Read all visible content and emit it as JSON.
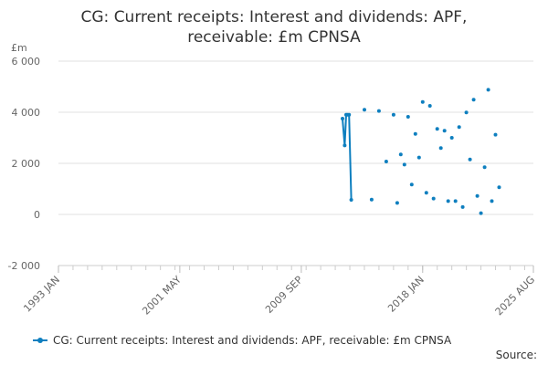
{
  "chart_data": {
    "type": "line",
    "title_line1": "CG: Current receipts: Interest and dividends: APF,",
    "title_line2": "receivable: £m CPNSA",
    "ylabel": "£m",
    "ylim": [
      -2000,
      6000
    ],
    "yticks": [
      -2000,
      0,
      2000,
      4000,
      6000
    ],
    "ytick_labels": [
      "-2 000",
      "0",
      "2 000",
      "4 000",
      "6 000"
    ],
    "xlim": [
      1993.0,
      2025.6
    ],
    "xticks": [
      1993.0,
      2001.33,
      2009.67,
      2018.0,
      2025.6
    ],
    "xtick_labels": [
      "1993 JAN",
      "2001 MAY",
      "2009 SEP",
      "2018 JAN",
      "2025 AUG"
    ],
    "grid": true,
    "legend_position": "bottom",
    "series": [
      {
        "name": "CG: Current receipts: Interest and dividends: APF, receivable: £m CPNSA",
        "color": "#0e7fbf",
        "x": [
          2012.5,
          2012.65,
          2012.75,
          2012.85,
          2012.95,
          2013.1,
          2014.0,
          2014.5,
          2015.0,
          2015.5,
          2016.0,
          2016.25,
          2016.5,
          2016.75,
          2017.0,
          2017.25,
          2017.5,
          2017.75,
          2018.0,
          2018.25,
          2018.5,
          2018.75,
          2019.0,
          2019.25,
          2019.5,
          2019.75,
          2020.0,
          2020.25,
          2020.5,
          2020.75,
          2021.0,
          2021.25,
          2021.5,
          2021.75,
          2022.0,
          2022.25,
          2022.5,
          2022.75,
          2023.0
        ],
        "y": [
          3750,
          2700,
          3900,
          3900,
          3900,
          570,
          4100,
          580,
          4050,
          2070,
          3900,
          450,
          2350,
          1950,
          3820,
          1170,
          3150,
          2230,
          4400,
          850,
          4250,
          620,
          3350,
          2600,
          3280,
          520,
          3000,
          520,
          3420,
          290,
          3990,
          2150,
          4490,
          720,
          50,
          1850,
          4880,
          520,
          3120
        ]
      }
    ],
    "connected_points": 6,
    "extra_point": {
      "x": 2023.25,
      "y": 1060
    }
  },
  "legend_label": "CG: Current receipts: Interest and dividends: APF, receivable: £m CPNSA",
  "source_label": "Source:"
}
